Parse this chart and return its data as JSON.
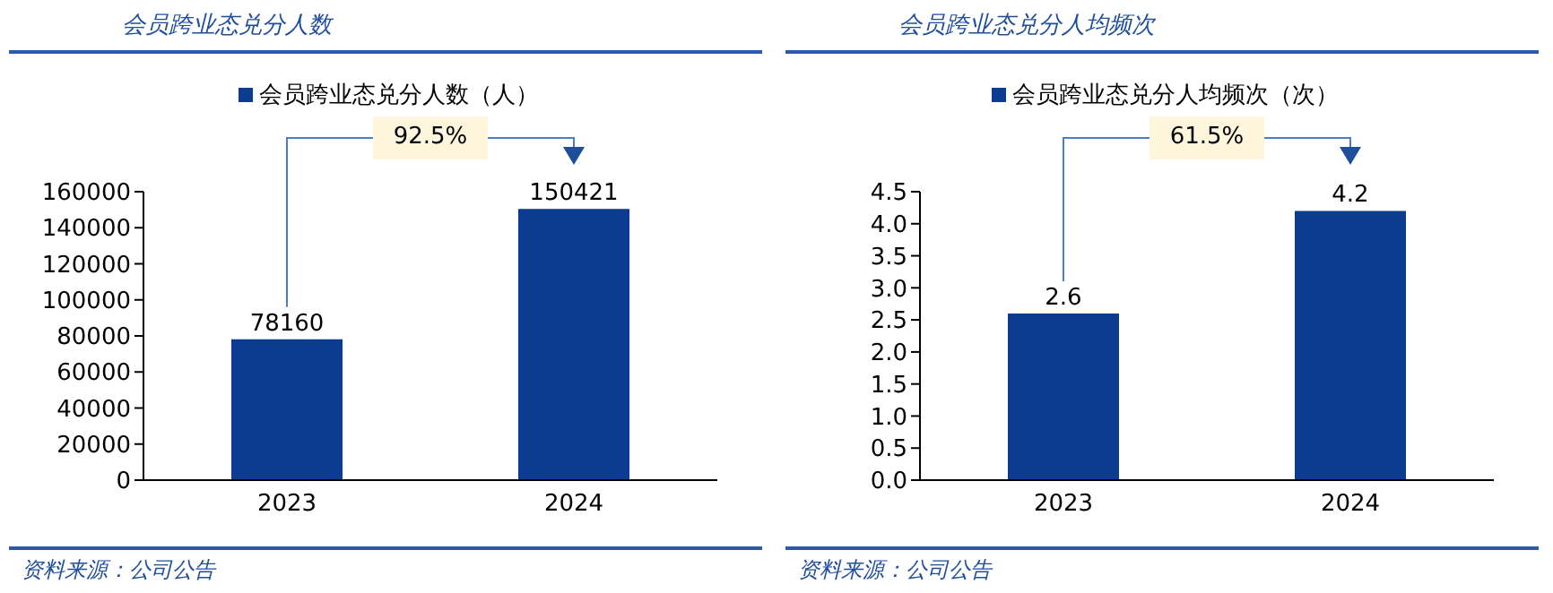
{
  "chart_data": [
    {
      "type": "bar",
      "title": "会员跨业态兑分人数",
      "categories": [
        "2023",
        "2024"
      ],
      "series": [
        {
          "name": "会员跨业态兑分人数（人）",
          "color": "#0b3c8f",
          "values": [
            78160,
            150421
          ]
        }
      ],
      "ylim": [
        0,
        160000
      ],
      "yticks": [
        0,
        20000,
        40000,
        60000,
        80000,
        100000,
        120000,
        140000,
        160000
      ],
      "data_labels": true,
      "legend": "top",
      "grid": false,
      "annotations": [
        "92.5%",
        "资料来源：公司公告"
      ]
    },
    {
      "type": "bar",
      "title": "会员跨业态兑分人均频次",
      "categories": [
        "2023",
        "2024"
      ],
      "series": [
        {
          "name": "会员跨业态兑分人均频次（次）",
          "color": "#0b3c8f",
          "values": [
            2.6,
            4.2
          ]
        }
      ],
      "ylim": [
        0,
        4.5
      ],
      "yticks": [
        {
          "value": 0,
          "label": "0.0"
        },
        {
          "value": 0.5,
          "label": "0.5"
        },
        {
          "value": 1,
          "label": "1.0"
        },
        {
          "value": 1.5,
          "label": "1.5"
        },
        {
          "value": 2,
          "label": "2.0"
        },
        {
          "value": 2.5,
          "label": "2.5"
        },
        {
          "value": 3,
          "label": "3.0"
        },
        {
          "value": 3.5,
          "label": "3.5"
        },
        {
          "value": 4,
          "label": "4.0"
        },
        {
          "value": 4.5,
          "label": "4.5"
        }
      ],
      "data_labels": true,
      "legend": "top",
      "grid": false,
      "annotations": [
        "61.5%",
        "资料来源：公司公告"
      ]
    }
  ]
}
